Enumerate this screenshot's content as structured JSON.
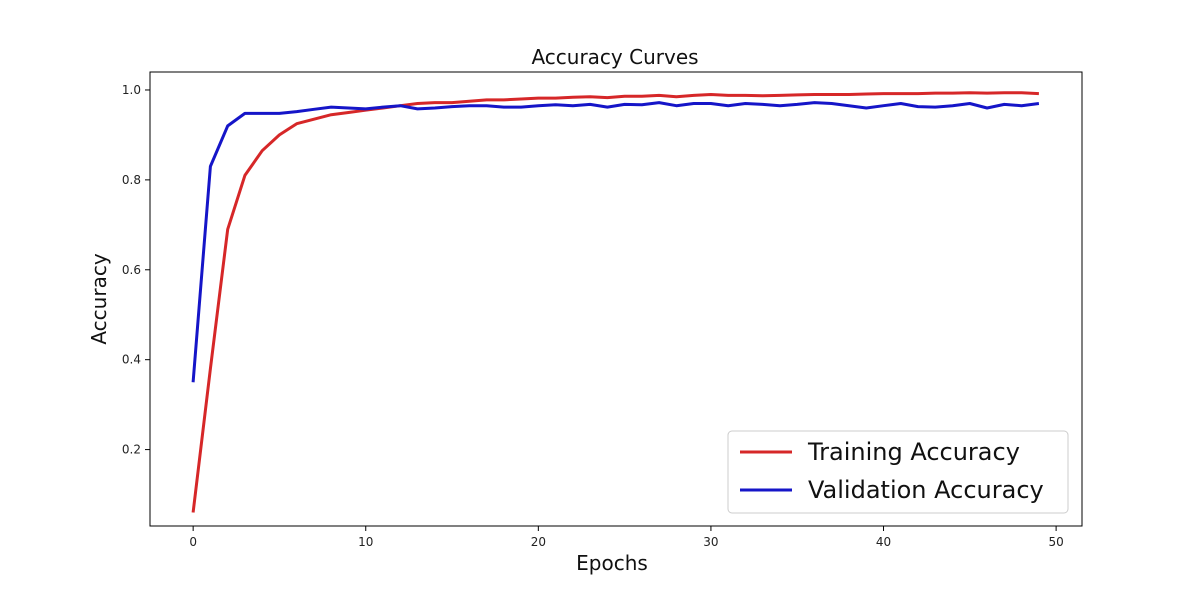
{
  "chart_data": {
    "type": "line",
    "title": "Accuracy Curves",
    "xlabel": "Epochs",
    "ylabel": "Accuracy",
    "xlim": [
      -2.5,
      51.5
    ],
    "ylim": [
      0.03,
      1.04
    ],
    "xticks": [
      0,
      10,
      20,
      30,
      40,
      50
    ],
    "yticks": [
      0.2,
      0.4,
      0.6,
      0.8,
      1.0
    ],
    "ytick_labels": [
      "0.2",
      "0.4",
      "0.6",
      "0.8",
      "1.0"
    ],
    "grid": false,
    "legend_position": "lower-right",
    "x": [
      0,
      1,
      2,
      3,
      4,
      5,
      6,
      7,
      8,
      9,
      10,
      11,
      12,
      13,
      14,
      15,
      16,
      17,
      18,
      19,
      20,
      21,
      22,
      23,
      24,
      25,
      26,
      27,
      28,
      29,
      30,
      31,
      32,
      33,
      34,
      35,
      36,
      37,
      38,
      39,
      40,
      41,
      42,
      43,
      44,
      45,
      46,
      47,
      48,
      49
    ],
    "series": [
      {
        "name": "Training Accuracy",
        "color": "#d62728",
        "values": [
          0.06,
          0.38,
          0.69,
          0.81,
          0.865,
          0.9,
          0.925,
          0.935,
          0.945,
          0.95,
          0.955,
          0.96,
          0.965,
          0.97,
          0.972,
          0.972,
          0.975,
          0.978,
          0.978,
          0.98,
          0.982,
          0.982,
          0.984,
          0.985,
          0.983,
          0.986,
          0.986,
          0.988,
          0.985,
          0.988,
          0.99,
          0.988,
          0.988,
          0.987,
          0.988,
          0.989,
          0.99,
          0.99,
          0.99,
          0.991,
          0.992,
          0.992,
          0.992,
          0.993,
          0.993,
          0.994,
          0.993,
          0.994,
          0.994,
          0.992
        ]
      },
      {
        "name": "Validation Accuracy",
        "color": "#1515c8",
        "values": [
          0.35,
          0.83,
          0.92,
          0.948,
          0.948,
          0.948,
          0.952,
          0.957,
          0.962,
          0.96,
          0.958,
          0.962,
          0.965,
          0.958,
          0.96,
          0.963,
          0.965,
          0.965,
          0.962,
          0.962,
          0.965,
          0.967,
          0.965,
          0.968,
          0.962,
          0.968,
          0.967,
          0.972,
          0.965,
          0.97,
          0.97,
          0.965,
          0.97,
          0.968,
          0.965,
          0.968,
          0.972,
          0.97,
          0.965,
          0.96,
          0.965,
          0.97,
          0.963,
          0.962,
          0.965,
          0.97,
          0.96,
          0.968,
          0.965,
          0.97
        ]
      }
    ]
  }
}
